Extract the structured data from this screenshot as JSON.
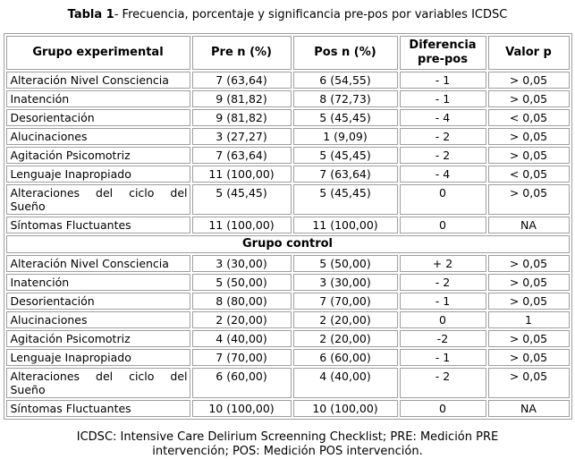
{
  "caption": {
    "label": "Tabla 1",
    "text": "- Frecuencia, porcentaje y significancia pre-pos por variables ICDSC"
  },
  "table": {
    "headers": [
      "Grupo experimental",
      "Pre n (%)",
      "Pos n (%)",
      "Diferencia pre-pos",
      "Valor p"
    ],
    "experimental_rows": [
      {
        "label": "Alteración Nivel Consciencia",
        "pre": "7 (63,64)",
        "pos": "6 (54,55)",
        "diff": "- 1",
        "p": "> 0,05"
      },
      {
        "label": "Inatención",
        "pre": "9 (81,82)",
        "pos": "8 (72,73)",
        "diff": "- 1",
        "p": "> 0,05"
      },
      {
        "label": "Desorientación",
        "pre": "9 (81,82)",
        "pos": "5 (45,45)",
        "diff": "- 4",
        "p": "< 0,05"
      },
      {
        "label": "Alucinaciones",
        "pre": "3 (27,27)",
        "pos": "1 (9,09)",
        "diff": "- 2",
        "p": "> 0,05"
      },
      {
        "label": "Agitación Psicomotriz",
        "pre": "7 (63,64)",
        "pos": "5 (45,45)",
        "diff": "- 2",
        "p": "> 0,05"
      },
      {
        "label": "Lenguaje Inapropiado",
        "pre": "11 (100,00)",
        "pos": "7 (63,64)",
        "diff": "- 4",
        "p": "< 0,05"
      },
      {
        "label": "Alteraciones del ciclo del Sueño",
        "pre": "5 (45,45)",
        "pos": "5 (45,45)",
        "diff": "0",
        "p": "> 0,05"
      },
      {
        "label": "Síntomas Fluctuantes",
        "pre": "11 (100,00)",
        "pos": "11 (100,00)",
        "diff": "0",
        "p": "NA"
      }
    ],
    "control_section_label": "Grupo control",
    "control_rows": [
      {
        "label": "Alteración Nivel Consciencia",
        "pre": "3 (30,00)",
        "pos": "5 (50,00)",
        "diff": "+ 2",
        "p": "> 0,05"
      },
      {
        "label": "Inatención",
        "pre": "5 (50,00)",
        "pos": "3 (30,00)",
        "diff": "- 2",
        "p": "> 0,05"
      },
      {
        "label": "Desorientación",
        "pre": "8 (80,00)",
        "pos": "7 (70,00)",
        "diff": "- 1",
        "p": "> 0,05"
      },
      {
        "label": "Alucinaciones",
        "pre": "2 (20,00)",
        "pos": "2 (20,00)",
        "diff": "0",
        "p": "1"
      },
      {
        "label": "Agitación Psicomotriz",
        "pre": "4 (40,00)",
        "pos": "2 (20,00)",
        "diff": "-2",
        "p": "> 0,05"
      },
      {
        "label": "Lenguaje Inapropiado",
        "pre": "7 (70,00)",
        "pos": "6 (60,00)",
        "diff": "- 1",
        "p": "> 0,05"
      },
      {
        "label": "Alteraciones del ciclo del Sueño",
        "pre": "6 (60,00)",
        "pos": "4 (40,00)",
        "diff": "- 2",
        "p": "> 0,05"
      },
      {
        "label": "Síntomas Fluctuantes",
        "pre": "10 (100,00)",
        "pos": "10 (100,00)",
        "diff": "0",
        "p": "NA"
      }
    ]
  },
  "footnote": {
    "line1": "ICDSC: Intensive Care Delirium Screenning Checklist; PRE: Medición PRE",
    "line2": "intervención; POS: Medición POS intervención."
  },
  "colors": {
    "text": "#000000",
    "border": "#9e9e9e",
    "background": "#ffffff"
  }
}
